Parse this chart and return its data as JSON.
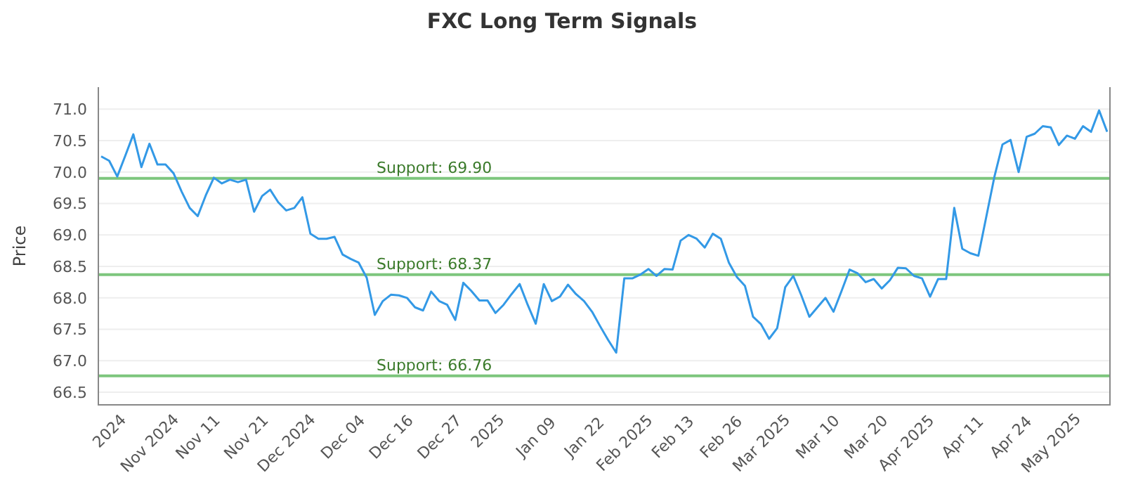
{
  "chart_data": {
    "type": "line",
    "title": "FXC Long Term Signals",
    "ylabel": "Price",
    "categories": [
      null,
      "2024",
      null,
      null,
      null,
      null,
      "Nov 2024",
      null,
      null,
      null,
      null,
      null,
      "Nov 11",
      null,
      null,
      null,
      null,
      null,
      "Nov 21",
      null,
      null,
      null,
      null,
      "Dec 2024",
      null,
      null,
      null,
      null,
      null,
      null,
      "Dec 04",
      null,
      null,
      null,
      null,
      null,
      "Dec 16",
      null,
      null,
      null,
      null,
      null,
      "Dec 27",
      null,
      null,
      null,
      null,
      null,
      "2025",
      null,
      null,
      null,
      null,
      null,
      "Jan 09",
      null,
      null,
      null,
      null,
      null,
      "Jan 22",
      null,
      null,
      null,
      null,
      "Feb 2025",
      null,
      null,
      null,
      null,
      null,
      "Feb 13",
      null,
      null,
      null,
      null,
      null,
      "Feb 26",
      null,
      null,
      null,
      null,
      "Mar 2025",
      null,
      null,
      null,
      null,
      null,
      null,
      "Mar 10",
      null,
      null,
      null,
      null,
      null,
      "Mar 20",
      null,
      null,
      null,
      null,
      "Apr 2025",
      null,
      null,
      null,
      null,
      null,
      null,
      "Apr 11",
      null,
      null,
      null,
      null,
      null,
      "Apr 24",
      null,
      null,
      null,
      null,
      "May 2025",
      null,
      null,
      null,
      null,
      null,
      null,
      null
    ],
    "series": [
      {
        "color": "#3399e6",
        "values": [
          70.25,
          70.18,
          69.93,
          70.26,
          70.6,
          70.08,
          70.45,
          70.12,
          70.12,
          69.98,
          69.69,
          69.43,
          69.3,
          69.63,
          69.91,
          69.82,
          69.88,
          69.84,
          69.88,
          69.37,
          69.62,
          69.72,
          69.52,
          69.39,
          69.43,
          69.6,
          69.02,
          68.94,
          68.94,
          68.97,
          68.69,
          68.62,
          68.56,
          68.32,
          67.73,
          67.95,
          68.05,
          68.04,
          68.0,
          67.85,
          67.8,
          68.1,
          67.95,
          67.89,
          67.65,
          68.24,
          68.11,
          67.96,
          67.96,
          67.76,
          67.89,
          68.06,
          68.22,
          67.89,
          67.59,
          68.22,
          67.95,
          68.02,
          68.21,
          68.06,
          67.95,
          67.78,
          67.55,
          67.33,
          67.13,
          68.31,
          68.31,
          68.37,
          68.46,
          68.35,
          68.46,
          68.45,
          68.91,
          69.0,
          68.94,
          68.8,
          69.02,
          68.94,
          68.56,
          68.33,
          68.19,
          67.7,
          67.58,
          67.35,
          67.52,
          68.17,
          68.35,
          68.04,
          67.7,
          67.85,
          68.0,
          67.78,
          68.11,
          68.45,
          68.39,
          68.25,
          68.3,
          68.15,
          68.28,
          68.48,
          68.47,
          68.35,
          68.31,
          68.02,
          68.3,
          68.3,
          69.43,
          68.78,
          68.71,
          68.67,
          69.3,
          69.93,
          70.44,
          70.51,
          70.0,
          70.56,
          70.61,
          70.73,
          70.71,
          70.43,
          70.58,
          70.53,
          70.73,
          70.64,
          70.98,
          70.64
        ]
      }
    ],
    "ylim": [
      66.3,
      71.35
    ],
    "yticks": [
      {
        "value": 66.5,
        "label": "66.5"
      },
      {
        "value": 67,
        "label": "67.0"
      },
      {
        "value": 67.5,
        "label": "67.5"
      },
      {
        "value": 68,
        "label": "68.0"
      },
      {
        "value": 68.5,
        "label": "68.5"
      },
      {
        "value": 69,
        "label": "69.0"
      },
      {
        "value": 69.5,
        "label": "69.5"
      },
      {
        "value": 70,
        "label": "70.0"
      },
      {
        "value": 70.5,
        "label": "70.5"
      },
      {
        "value": 71,
        "label": "71.0"
      }
    ],
    "grid": "y",
    "ref_lines": [
      {
        "axis": "y",
        "value": 69.9,
        "label": "Support: 69.90",
        "color": "#7dc67d"
      },
      {
        "axis": "y",
        "value": 68.37,
        "label": "Support: 68.37",
        "color": "#7dc67d"
      },
      {
        "axis": "y",
        "value": 66.76,
        "label": "Support: 66.76",
        "color": "#7dc67d"
      }
    ]
  }
}
